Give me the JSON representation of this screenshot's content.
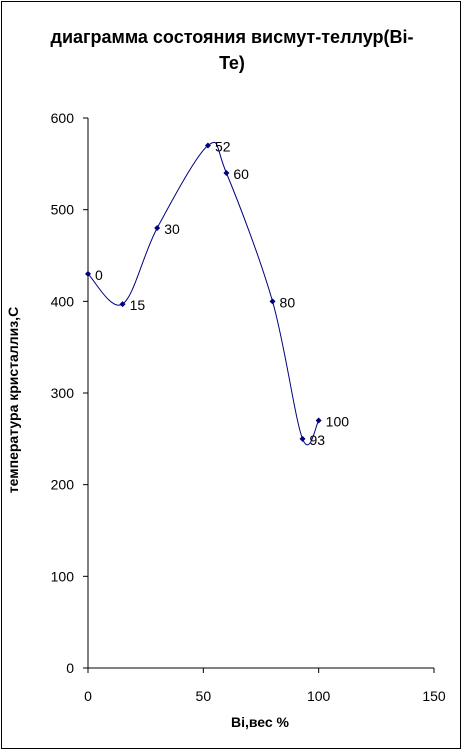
{
  "chart_data": {
    "type": "scatter",
    "title": "диаграмма состояния висмут-теллур(Bi-Te)",
    "xlabel": "Bi,вес %",
    "ylabel": "температура кристаллиз,С",
    "xlim": [
      0,
      150
    ],
    "ylim": [
      0,
      600
    ],
    "x_ticks": [
      0,
      50,
      100,
      150
    ],
    "y_ticks": [
      0,
      100,
      200,
      300,
      400,
      500,
      600
    ],
    "grid": false,
    "legend": "none",
    "line_style": "smoothed",
    "series": [
      {
        "x": [
          0,
          15,
          30,
          52,
          60,
          80,
          93,
          100
        ],
        "y": [
          430,
          397,
          480,
          570,
          540,
          400,
          250,
          270
        ],
        "labels": [
          "0",
          "15",
          "30",
          "52",
          "60",
          "80",
          "93",
          "100"
        ]
      }
    ]
  },
  "colors": {
    "line": "#000080",
    "axis": "#000000"
  }
}
